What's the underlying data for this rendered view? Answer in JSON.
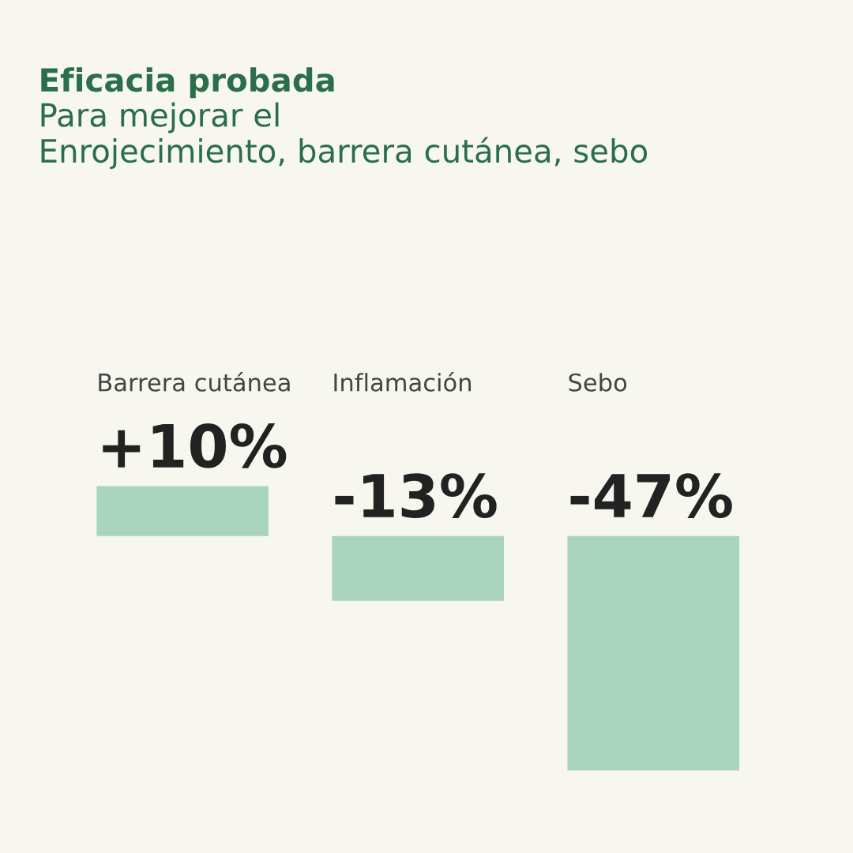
{
  "chart_data": {
    "type": "bar",
    "title": "Eficacia probada",
    "subtitle": "Para mejorar el\nEnrojecimiento, barrera cutánea, sebo",
    "categories": [
      "Barrera cutánea",
      "Inflamación",
      "Sebo"
    ],
    "values": [
      10,
      -13,
      -47
    ],
    "value_labels": [
      "+10%",
      "-13%",
      "-47%"
    ],
    "color": "#a9d4bf"
  }
}
